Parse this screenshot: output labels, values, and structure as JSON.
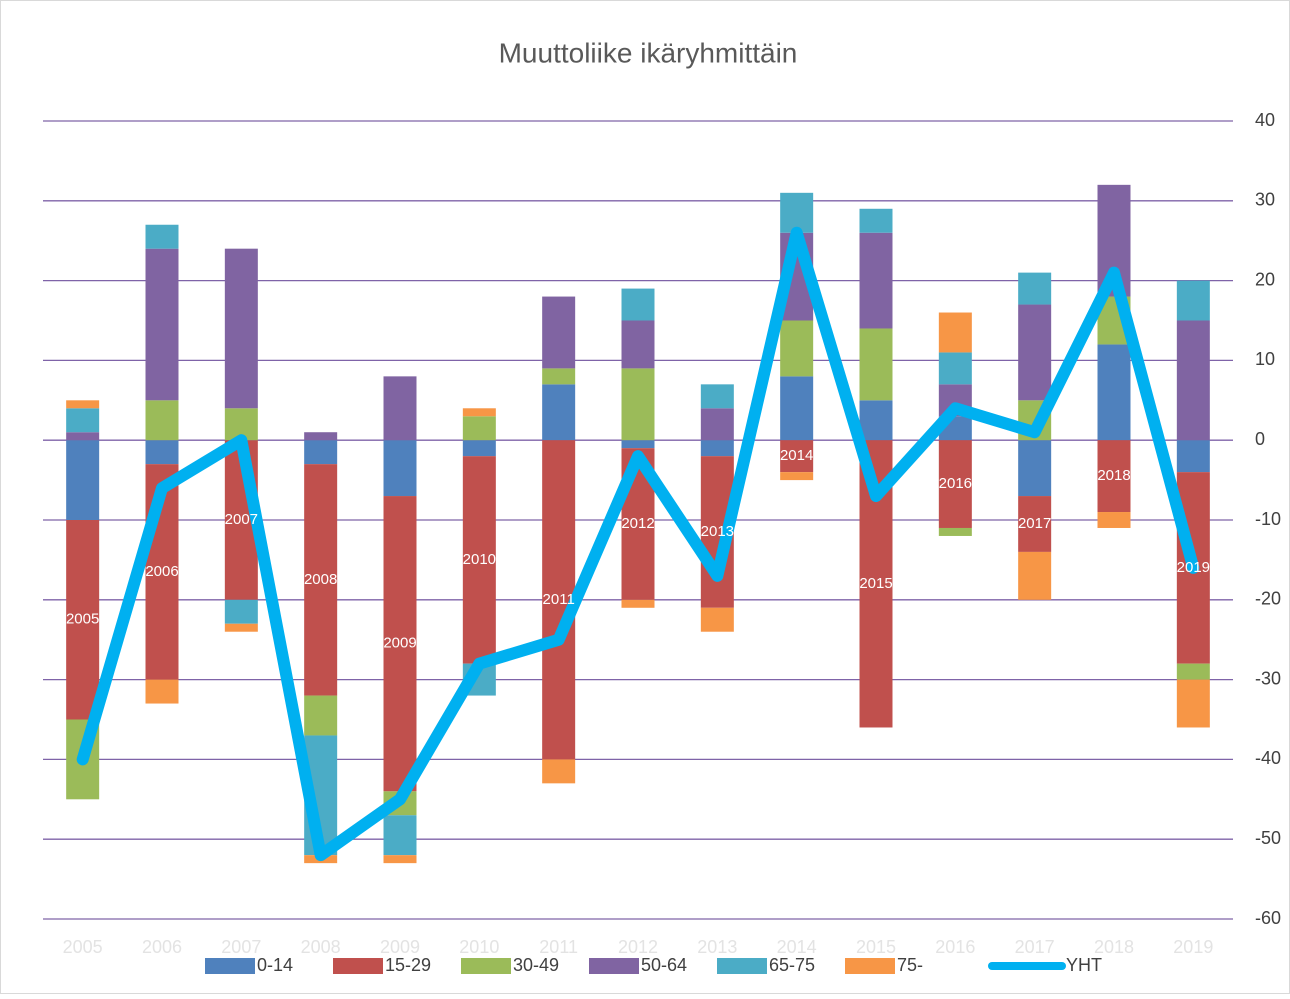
{
  "chart_data": {
    "type": "bar",
    "stacked": true,
    "title": "Muuttoliike ikäryhmittäin",
    "categories": [
      "2005",
      "2006",
      "2007",
      "2008",
      "2009",
      "2010",
      "2011",
      "2012",
      "2013",
      "2014",
      "2015",
      "2016",
      "2017",
      "2018",
      "2019"
    ],
    "series": [
      {
        "name": "0-14",
        "color": "#4f81bd",
        "values": [
          -10,
          -3,
          0,
          -3,
          -7,
          -2,
          7,
          -1,
          -2,
          8,
          5,
          3,
          -7,
          12,
          -4
        ]
      },
      {
        "name": "15-29",
        "color": "#c0504d",
        "values": [
          -25,
          -27,
          -20,
          -29,
          -37,
          -26,
          -40,
          -19,
          -19,
          -4,
          -36,
          -11,
          -7,
          -9,
          -24
        ]
      },
      {
        "name": "30-49",
        "color": "#9bbb59",
        "values": [
          -10,
          5,
          4,
          -5,
          -3,
          3,
          2,
          9,
          0,
          7,
          9,
          -1,
          5,
          6,
          -2
        ]
      },
      {
        "name": "50-64",
        "color": "#8064a2",
        "values": [
          1,
          19,
          20,
          1,
          8,
          0,
          9,
          6,
          4,
          11,
          12,
          4,
          12,
          14,
          15
        ]
      },
      {
        "name": "65-75",
        "color": "#4bacc6",
        "values": [
          3,
          3,
          -3,
          -15,
          -5,
          -4,
          0,
          4,
          3,
          5,
          3,
          4,
          4,
          0,
          5
        ]
      },
      {
        "name": "75-",
        "color": "#f79646",
        "values": [
          1,
          -3,
          -1,
          -1,
          -1,
          1,
          -3,
          -1,
          -3,
          -1,
          0,
          5,
          -6,
          -2,
          -6
        ]
      },
      {
        "name": "YHT",
        "color": "#00b0f0",
        "type": "line",
        "values": [
          -40,
          -6,
          0,
          -52,
          -45,
          -28,
          -25,
          -2,
          -17,
          26,
          -7,
          4,
          1,
          21,
          -16
        ]
      }
    ],
    "ylim": [
      -60,
      40
    ],
    "yticks": [
      -60,
      -50,
      -40,
      -30,
      -20,
      -10,
      0,
      10,
      20,
      30,
      40
    ],
    "grid": true,
    "legend": "bottom"
  }
}
